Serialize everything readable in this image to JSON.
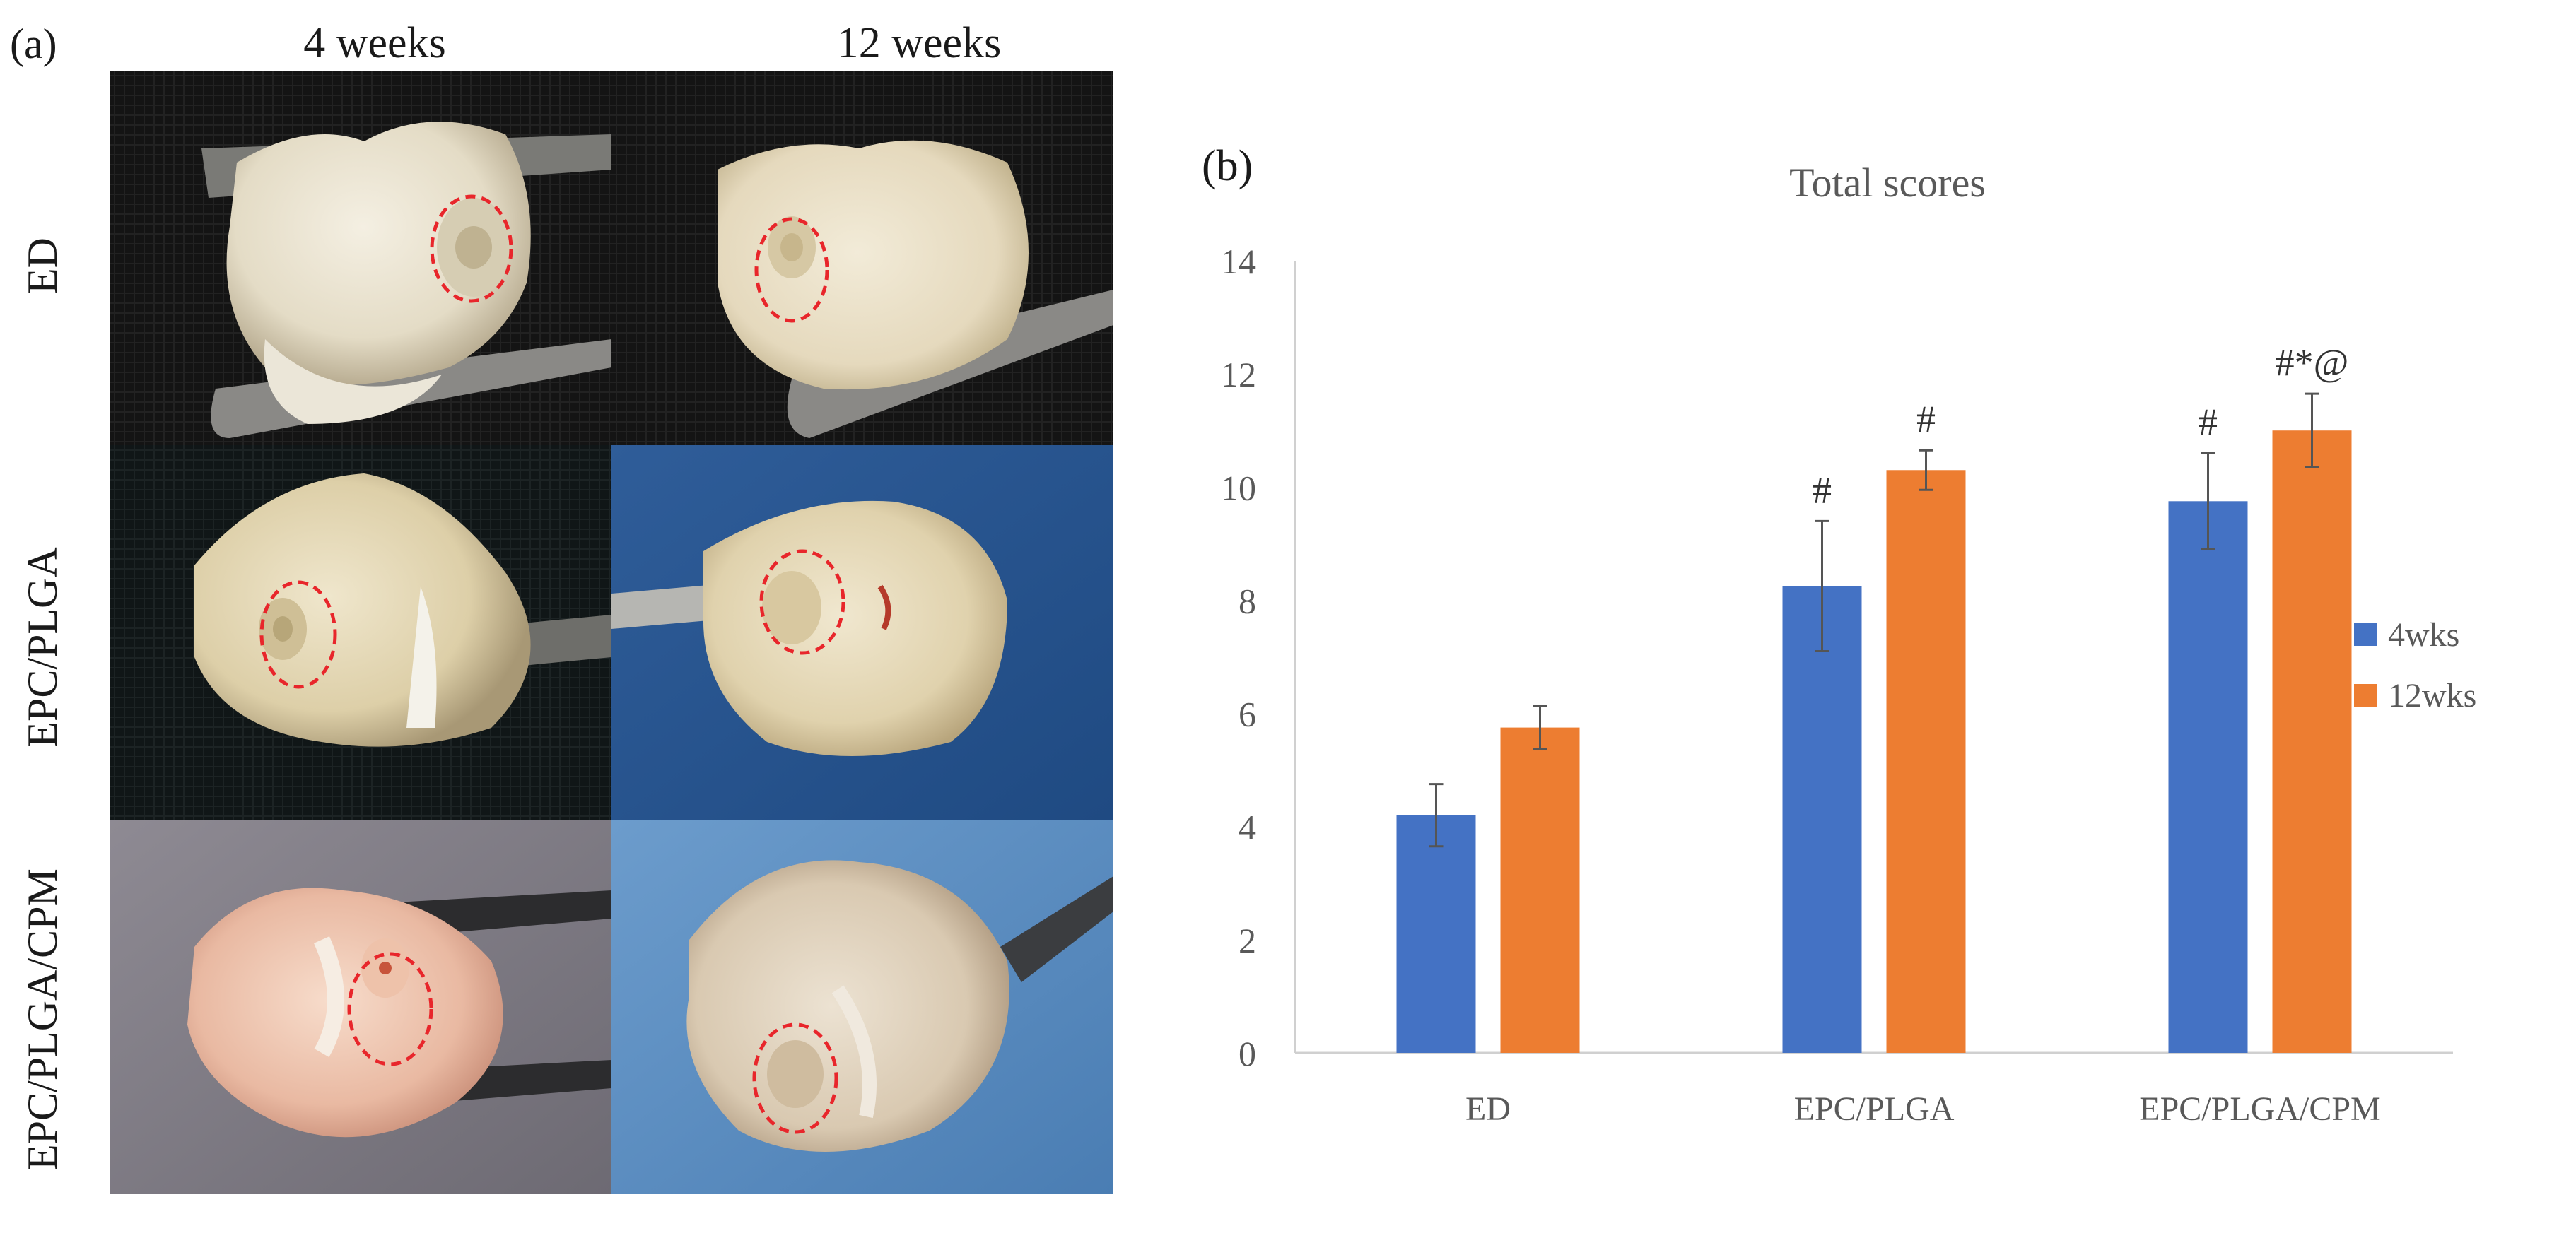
{
  "panel_a": {
    "label": "(a)",
    "columns": [
      "4 weeks",
      "12 weeks"
    ],
    "rows": [
      "ED",
      "EPC/PLGA",
      "EPC/PLGA/CPM"
    ]
  },
  "panel_b": {
    "label": "(b)"
  },
  "colors": {
    "series_4wks": "#4472C4",
    "series_12wks": "#ED7D31",
    "defect_circle": "#e8262b",
    "axis": "#d0d0d0",
    "text": "#595959"
  },
  "chart_data": {
    "type": "bar",
    "title": "Total scores",
    "categories": [
      "ED",
      "EPC/PLGA",
      "EPC/PLGA/CPM"
    ],
    "series": [
      {
        "name": "4wks",
        "values": [
          4.2,
          8.25,
          9.75
        ],
        "errors": [
          0.55,
          1.15,
          0.85
        ],
        "annotations": [
          "",
          "#",
          "#"
        ]
      },
      {
        "name": "12wks",
        "values": [
          5.75,
          10.3,
          11.0
        ],
        "errors": [
          0.38,
          0.35,
          0.65
        ],
        "annotations": [
          "",
          "#",
          "#*@"
        ]
      }
    ],
    "xlabel": "",
    "ylabel": "",
    "ylim": [
      0,
      14
    ],
    "yticks": [
      0,
      2,
      4,
      6,
      8,
      10,
      12,
      14
    ],
    "grid": false,
    "legend": "right"
  }
}
